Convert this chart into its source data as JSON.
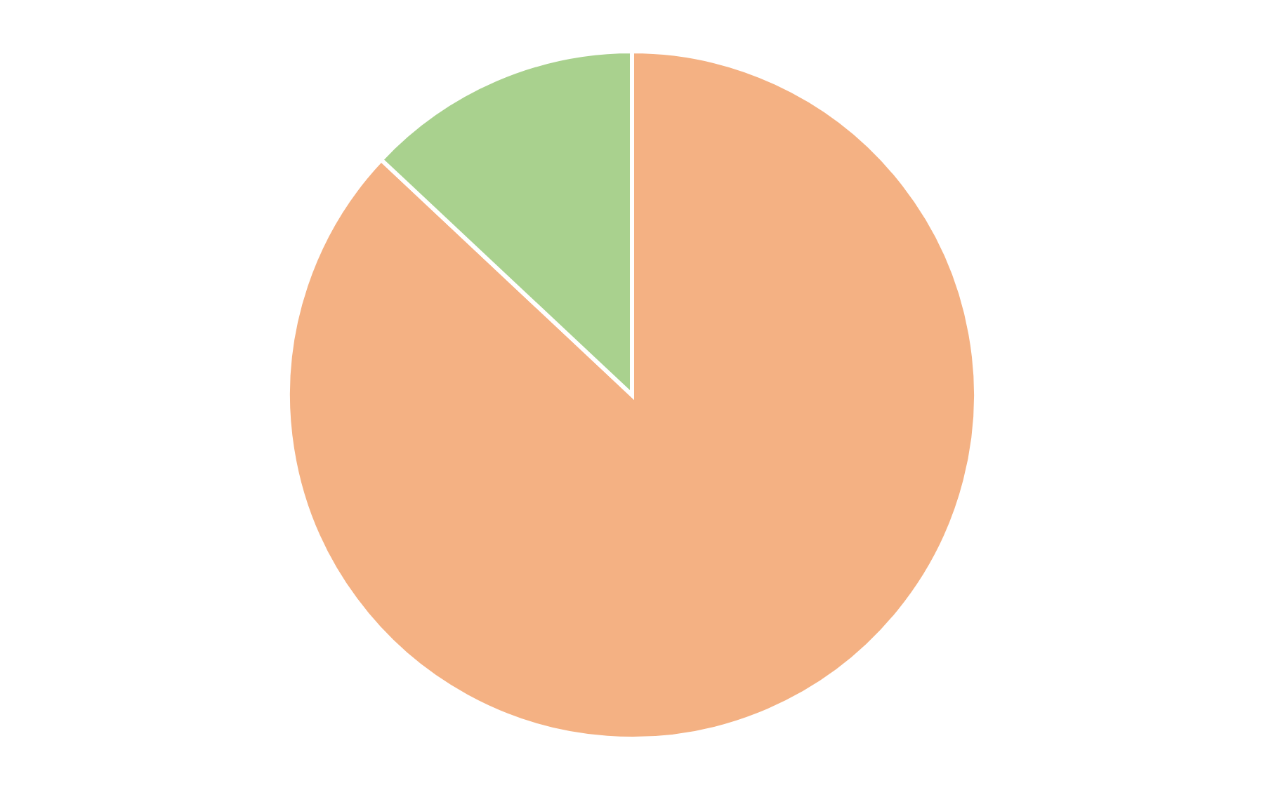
{
  "chart_data": {
    "type": "pie",
    "categories": [
      null,
      null
    ],
    "values": [
      87,
      13
    ],
    "colors": [
      "#f4b183",
      "#a9d18e"
    ]
  }
}
